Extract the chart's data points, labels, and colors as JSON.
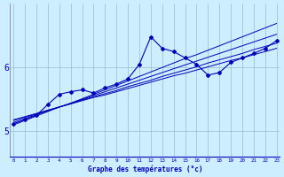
{
  "bg_color": "#cceeff",
  "line_color": "#0000bb",
  "grid_color": "#99bbcc",
  "xlabel": "Graphe des températures (°c)",
  "x_ticks": [
    0,
    1,
    2,
    3,
    4,
    5,
    6,
    7,
    8,
    9,
    10,
    11,
    12,
    13,
    14,
    15,
    16,
    17,
    18,
    19,
    20,
    21,
    22,
    23
  ],
  "ylim": [
    4.6,
    7.0
  ],
  "yticks": [
    5,
    6
  ],
  "xlim": [
    -0.3,
    23.3
  ],
  "main_line": [
    5.12,
    5.18,
    5.25,
    5.42,
    5.58,
    5.62,
    5.65,
    5.6,
    5.68,
    5.74,
    5.82,
    6.05,
    6.48,
    6.3,
    6.25,
    6.15,
    6.05,
    5.88,
    5.92,
    6.08,
    6.15,
    6.22,
    6.3,
    6.42
  ],
  "reg_line1": [
    5.1,
    5.17,
    5.24,
    5.31,
    5.38,
    5.44,
    5.51,
    5.58,
    5.65,
    5.72,
    5.79,
    5.86,
    5.93,
    6.0,
    6.07,
    6.14,
    6.2,
    6.27,
    6.34,
    6.41,
    6.48,
    6.55,
    6.62,
    6.69
  ],
  "reg_line2": [
    5.14,
    5.2,
    5.26,
    5.32,
    5.38,
    5.44,
    5.5,
    5.56,
    5.62,
    5.68,
    5.74,
    5.8,
    5.86,
    5.92,
    5.98,
    6.04,
    6.1,
    6.16,
    6.22,
    6.28,
    6.34,
    6.4,
    6.46,
    6.52
  ],
  "reg_line3": [
    5.17,
    5.22,
    5.27,
    5.33,
    5.38,
    5.43,
    5.49,
    5.54,
    5.59,
    5.64,
    5.7,
    5.75,
    5.8,
    5.86,
    5.91,
    5.96,
    6.01,
    6.07,
    6.12,
    6.17,
    6.22,
    6.28,
    6.33,
    6.38
  ],
  "reg_line4": [
    5.18,
    5.23,
    5.28,
    5.33,
    5.38,
    5.43,
    5.48,
    5.53,
    5.57,
    5.62,
    5.67,
    5.72,
    5.77,
    5.82,
    5.87,
    5.91,
    5.96,
    6.01,
    6.06,
    6.11,
    6.15,
    6.2,
    6.25,
    6.3
  ]
}
